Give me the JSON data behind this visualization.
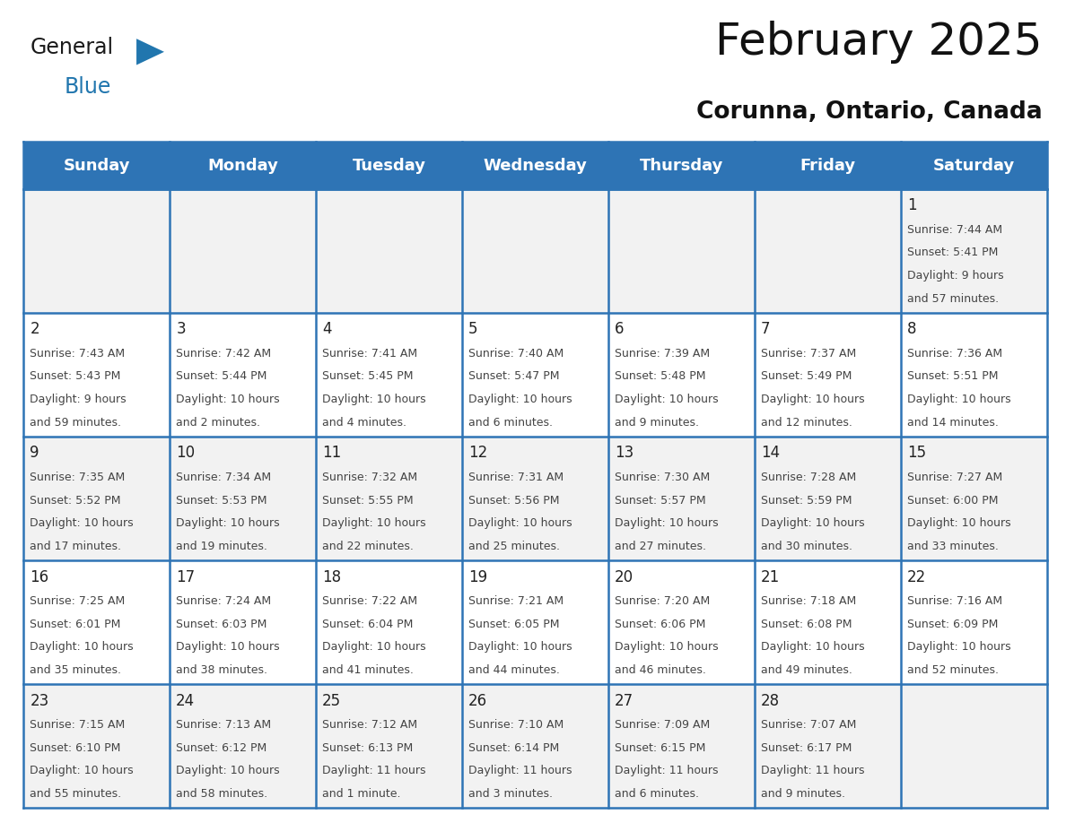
{
  "title": "February 2025",
  "subtitle": "Corunna, Ontario, Canada",
  "header_bg": "#2E74B5",
  "header_text_color": "#FFFFFF",
  "row_bg_odd": "#F2F2F2",
  "row_bg_even": "#FFFFFF",
  "cell_border_color": "#2E74B5",
  "day_headers": [
    "Sunday",
    "Monday",
    "Tuesday",
    "Wednesday",
    "Thursday",
    "Friday",
    "Saturday"
  ],
  "days": [
    {
      "day": 1,
      "col": 6,
      "row": 0,
      "sunrise": "7:44 AM",
      "sunset": "5:41 PM",
      "daylight_line1": "Daylight: 9 hours",
      "daylight_line2": "and 57 minutes."
    },
    {
      "day": 2,
      "col": 0,
      "row": 1,
      "sunrise": "7:43 AM",
      "sunset": "5:43 PM",
      "daylight_line1": "Daylight: 9 hours",
      "daylight_line2": "and 59 minutes."
    },
    {
      "day": 3,
      "col": 1,
      "row": 1,
      "sunrise": "7:42 AM",
      "sunset": "5:44 PM",
      "daylight_line1": "Daylight: 10 hours",
      "daylight_line2": "and 2 minutes."
    },
    {
      "day": 4,
      "col": 2,
      "row": 1,
      "sunrise": "7:41 AM",
      "sunset": "5:45 PM",
      "daylight_line1": "Daylight: 10 hours",
      "daylight_line2": "and 4 minutes."
    },
    {
      "day": 5,
      "col": 3,
      "row": 1,
      "sunrise": "7:40 AM",
      "sunset": "5:47 PM",
      "daylight_line1": "Daylight: 10 hours",
      "daylight_line2": "and 6 minutes."
    },
    {
      "day": 6,
      "col": 4,
      "row": 1,
      "sunrise": "7:39 AM",
      "sunset": "5:48 PM",
      "daylight_line1": "Daylight: 10 hours",
      "daylight_line2": "and 9 minutes."
    },
    {
      "day": 7,
      "col": 5,
      "row": 1,
      "sunrise": "7:37 AM",
      "sunset": "5:49 PM",
      "daylight_line1": "Daylight: 10 hours",
      "daylight_line2": "and 12 minutes."
    },
    {
      "day": 8,
      "col": 6,
      "row": 1,
      "sunrise": "7:36 AM",
      "sunset": "5:51 PM",
      "daylight_line1": "Daylight: 10 hours",
      "daylight_line2": "and 14 minutes."
    },
    {
      "day": 9,
      "col": 0,
      "row": 2,
      "sunrise": "7:35 AM",
      "sunset": "5:52 PM",
      "daylight_line1": "Daylight: 10 hours",
      "daylight_line2": "and 17 minutes."
    },
    {
      "day": 10,
      "col": 1,
      "row": 2,
      "sunrise": "7:34 AM",
      "sunset": "5:53 PM",
      "daylight_line1": "Daylight: 10 hours",
      "daylight_line2": "and 19 minutes."
    },
    {
      "day": 11,
      "col": 2,
      "row": 2,
      "sunrise": "7:32 AM",
      "sunset": "5:55 PM",
      "daylight_line1": "Daylight: 10 hours",
      "daylight_line2": "and 22 minutes."
    },
    {
      "day": 12,
      "col": 3,
      "row": 2,
      "sunrise": "7:31 AM",
      "sunset": "5:56 PM",
      "daylight_line1": "Daylight: 10 hours",
      "daylight_line2": "and 25 minutes."
    },
    {
      "day": 13,
      "col": 4,
      "row": 2,
      "sunrise": "7:30 AM",
      "sunset": "5:57 PM",
      "daylight_line1": "Daylight: 10 hours",
      "daylight_line2": "and 27 minutes."
    },
    {
      "day": 14,
      "col": 5,
      "row": 2,
      "sunrise": "7:28 AM",
      "sunset": "5:59 PM",
      "daylight_line1": "Daylight: 10 hours",
      "daylight_line2": "and 30 minutes."
    },
    {
      "day": 15,
      "col": 6,
      "row": 2,
      "sunrise": "7:27 AM",
      "sunset": "6:00 PM",
      "daylight_line1": "Daylight: 10 hours",
      "daylight_line2": "and 33 minutes."
    },
    {
      "day": 16,
      "col": 0,
      "row": 3,
      "sunrise": "7:25 AM",
      "sunset": "6:01 PM",
      "daylight_line1": "Daylight: 10 hours",
      "daylight_line2": "and 35 minutes."
    },
    {
      "day": 17,
      "col": 1,
      "row": 3,
      "sunrise": "7:24 AM",
      "sunset": "6:03 PM",
      "daylight_line1": "Daylight: 10 hours",
      "daylight_line2": "and 38 minutes."
    },
    {
      "day": 18,
      "col": 2,
      "row": 3,
      "sunrise": "7:22 AM",
      "sunset": "6:04 PM",
      "daylight_line1": "Daylight: 10 hours",
      "daylight_line2": "and 41 minutes."
    },
    {
      "day": 19,
      "col": 3,
      "row": 3,
      "sunrise": "7:21 AM",
      "sunset": "6:05 PM",
      "daylight_line1": "Daylight: 10 hours",
      "daylight_line2": "and 44 minutes."
    },
    {
      "day": 20,
      "col": 4,
      "row": 3,
      "sunrise": "7:20 AM",
      "sunset": "6:06 PM",
      "daylight_line1": "Daylight: 10 hours",
      "daylight_line2": "and 46 minutes."
    },
    {
      "day": 21,
      "col": 5,
      "row": 3,
      "sunrise": "7:18 AM",
      "sunset": "6:08 PM",
      "daylight_line1": "Daylight: 10 hours",
      "daylight_line2": "and 49 minutes."
    },
    {
      "day": 22,
      "col": 6,
      "row": 3,
      "sunrise": "7:16 AM",
      "sunset": "6:09 PM",
      "daylight_line1": "Daylight: 10 hours",
      "daylight_line2": "and 52 minutes."
    },
    {
      "day": 23,
      "col": 0,
      "row": 4,
      "sunrise": "7:15 AM",
      "sunset": "6:10 PM",
      "daylight_line1": "Daylight: 10 hours",
      "daylight_line2": "and 55 minutes."
    },
    {
      "day": 24,
      "col": 1,
      "row": 4,
      "sunrise": "7:13 AM",
      "sunset": "6:12 PM",
      "daylight_line1": "Daylight: 10 hours",
      "daylight_line2": "and 58 minutes."
    },
    {
      "day": 25,
      "col": 2,
      "row": 4,
      "sunrise": "7:12 AM",
      "sunset": "6:13 PM",
      "daylight_line1": "Daylight: 11 hours",
      "daylight_line2": "and 1 minute."
    },
    {
      "day": 26,
      "col": 3,
      "row": 4,
      "sunrise": "7:10 AM",
      "sunset": "6:14 PM",
      "daylight_line1": "Daylight: 11 hours",
      "daylight_line2": "and 3 minutes."
    },
    {
      "day": 27,
      "col": 4,
      "row": 4,
      "sunrise": "7:09 AM",
      "sunset": "6:15 PM",
      "daylight_line1": "Daylight: 11 hours",
      "daylight_line2": "and 6 minutes."
    },
    {
      "day": 28,
      "col": 5,
      "row": 4,
      "sunrise": "7:07 AM",
      "sunset": "6:17 PM",
      "daylight_line1": "Daylight: 11 hours",
      "daylight_line2": "and 9 minutes."
    }
  ],
  "num_rows": 5,
  "num_cols": 7,
  "title_fontsize": 36,
  "subtitle_fontsize": 19,
  "day_header_fontsize": 13,
  "day_num_fontsize": 12,
  "cell_text_fontsize": 9,
  "logo_text_general_color": "#1a1a1a",
  "logo_text_blue_color": "#2176AE"
}
